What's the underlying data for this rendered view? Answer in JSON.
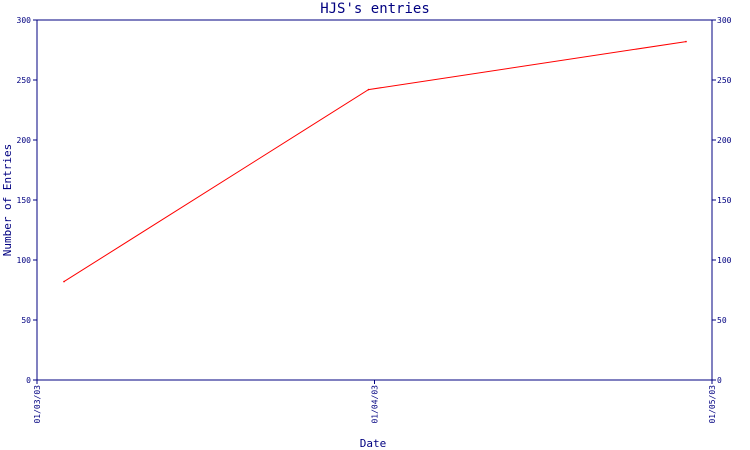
{
  "chart_data": {
    "type": "line",
    "title": "HJS's entries",
    "xlabel": "Date",
    "ylabel": "Number of Entries",
    "x_ticks": [
      "01/03/03",
      "01/04/03",
      "01/05/03"
    ],
    "y_ticks": [
      "0",
      "50",
      "100",
      "150",
      "200",
      "250",
      "300"
    ],
    "ylim": [
      0,
      300
    ],
    "grid": false,
    "series": [
      {
        "color": "#ff0000",
        "points": [
          {
            "x": "01/03/03",
            "y": 82
          },
          {
            "x": "01/04/03",
            "y": 242
          },
          {
            "x": "01/05/03",
            "y": 282
          }
        ]
      }
    ],
    "colors": {
      "axis": "#000080",
      "text": "#000080",
      "line": "#ff0000"
    }
  }
}
